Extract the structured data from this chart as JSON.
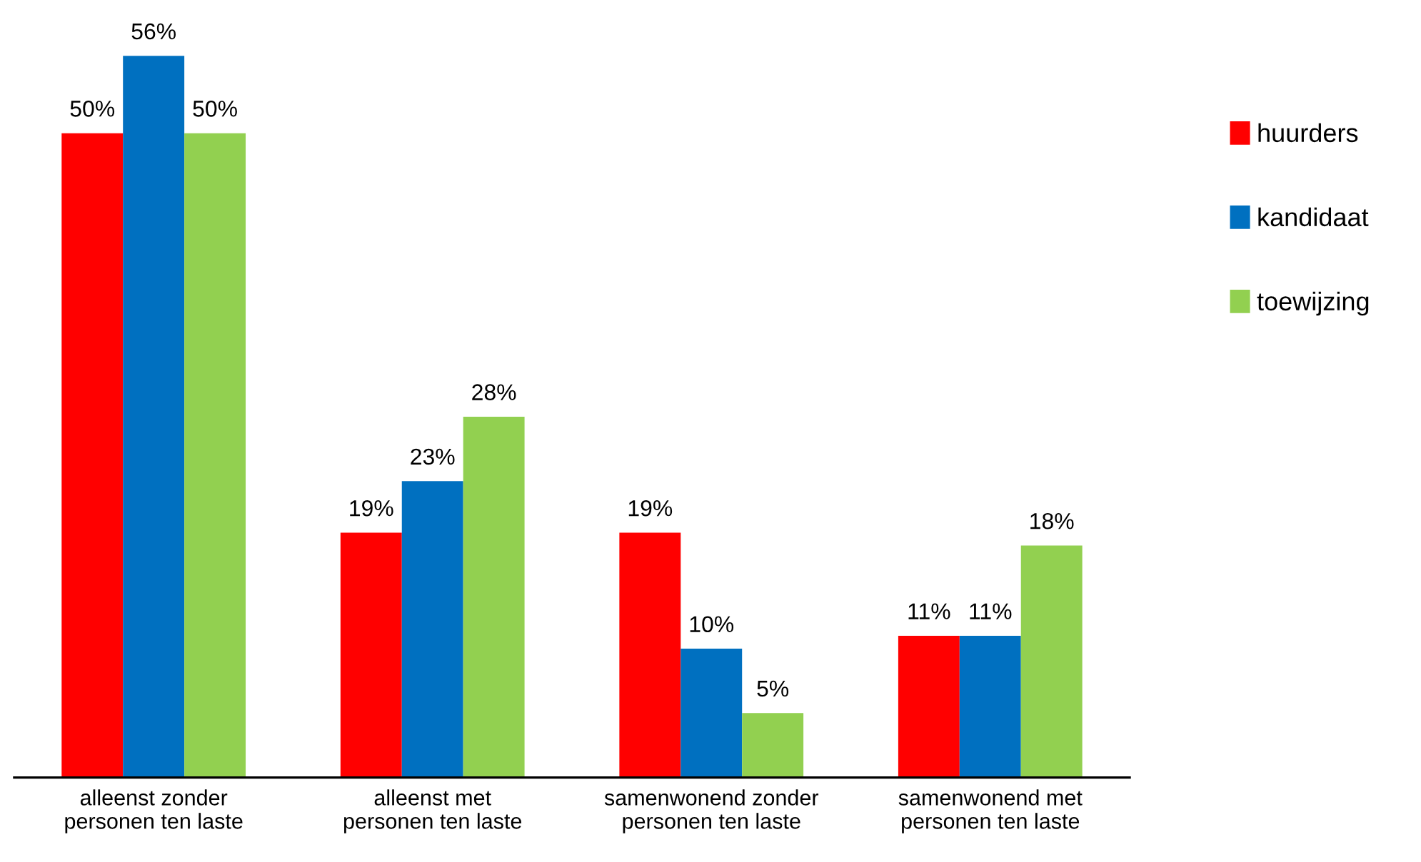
{
  "chart_data": {
    "type": "bar",
    "categories": [
      "alleenst zonder personen ten laste",
      "alleenst met personen ten laste",
      "samenwonend zonder personen ten laste",
      "samenwonend met personen ten laste"
    ],
    "series": [
      {
        "name": "huurders",
        "color": "#ff0000",
        "values": [
          50,
          19,
          19,
          11
        ],
        "value_labels": [
          "50%",
          "19%",
          "19%",
          "11%"
        ]
      },
      {
        "name": "kandidaat",
        "color": "#0070c0",
        "values": [
          56,
          23,
          10,
          11
        ],
        "value_labels": [
          "56%",
          "23%",
          "10%",
          "11%"
        ]
      },
      {
        "name": "toewijzing",
        "color": "#92d050",
        "values": [
          50,
          28,
          5,
          18
        ],
        "value_labels": [
          "50%",
          "28%",
          "5%",
          "18%"
        ]
      }
    ],
    "legend": "right"
  }
}
